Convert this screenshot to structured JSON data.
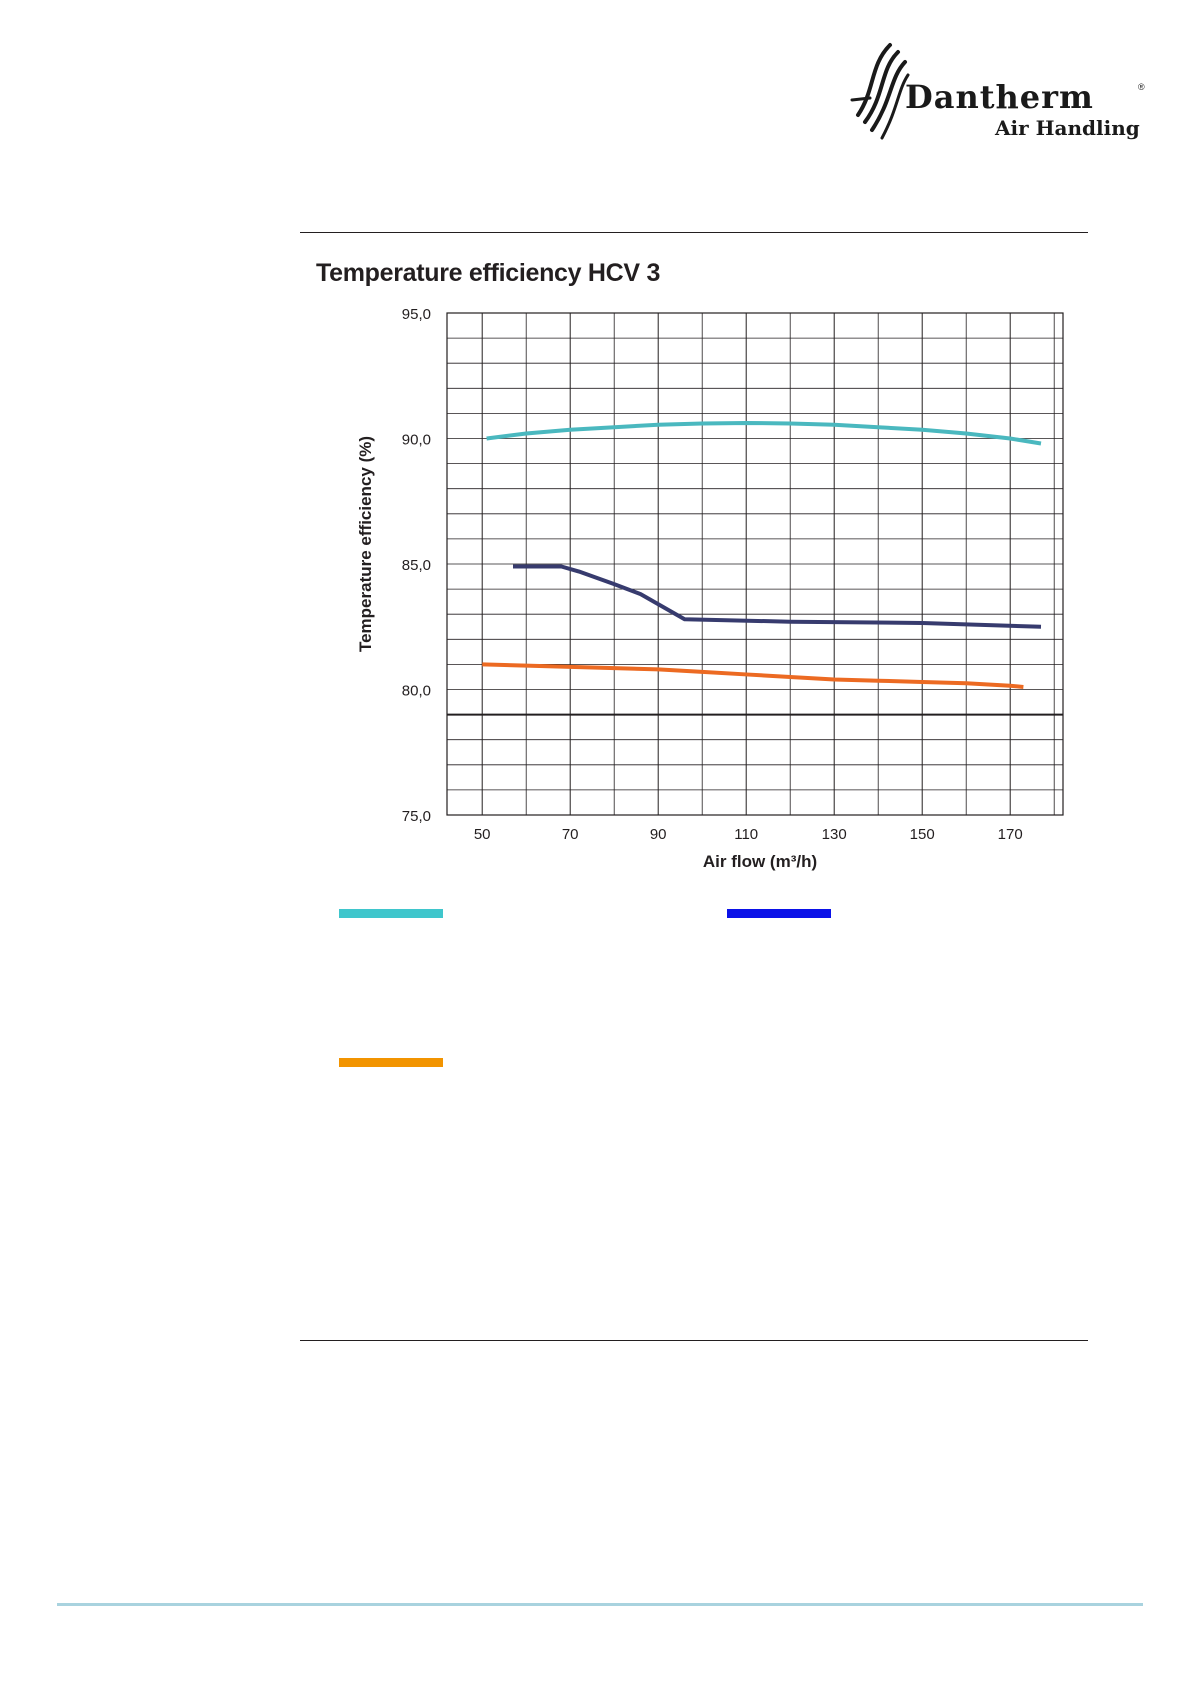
{
  "logo": {
    "name": "Dantherm",
    "registered": "®",
    "subtitle": "Air Handling"
  },
  "chart_data": {
    "type": "line",
    "title": "Temperature efficiency HCV 3",
    "xlabel": "Air flow (m³/h)",
    "ylabel": "Temperature efficiency (%)",
    "xlim": [
      42,
      182
    ],
    "ylim": [
      75,
      95
    ],
    "x_ticks": [
      50,
      70,
      90,
      110,
      130,
      150,
      170
    ],
    "x_tick_labels": [
      "50",
      "70",
      "90",
      "110",
      "130",
      "150",
      "170"
    ],
    "y_ticks": [
      75,
      80,
      85,
      90,
      95
    ],
    "y_tick_labels": [
      "75,0",
      "80,0",
      "85,0",
      "90,0",
      "95,0"
    ],
    "grid": true,
    "series": [
      {
        "color": "#4ab8bf",
        "x": [
          51,
          60,
          70,
          80,
          90,
          100,
          110,
          120,
          130,
          140,
          150,
          160,
          170,
          177
        ],
        "y": [
          90.0,
          90.2,
          90.35,
          90.45,
          90.55,
          90.6,
          90.62,
          90.6,
          90.55,
          90.45,
          90.35,
          90.2,
          90.0,
          89.8
        ]
      },
      {
        "color": "#373b6e",
        "x": [
          57,
          68,
          72,
          80,
          86,
          96,
          120,
          150,
          177
        ],
        "y": [
          84.9,
          84.9,
          84.7,
          84.2,
          83.8,
          82.8,
          82.7,
          82.65,
          82.5
        ]
      },
      {
        "color": "#ec6a22",
        "x": [
          50,
          60,
          70,
          80,
          90,
          100,
          110,
          120,
          130,
          140,
          150,
          160,
          170,
          173
        ],
        "y": [
          81.0,
          80.95,
          80.9,
          80.85,
          80.8,
          80.7,
          80.6,
          80.5,
          80.4,
          80.35,
          80.3,
          80.25,
          80.15,
          80.1
        ]
      }
    ]
  },
  "legend": {
    "swatches": [
      {
        "color": "#3fc6cc"
      },
      {
        "color": "#0b12e8"
      },
      {
        "color": "#f29400"
      }
    ]
  },
  "footer": {
    "line_color": "#a9d3df"
  }
}
